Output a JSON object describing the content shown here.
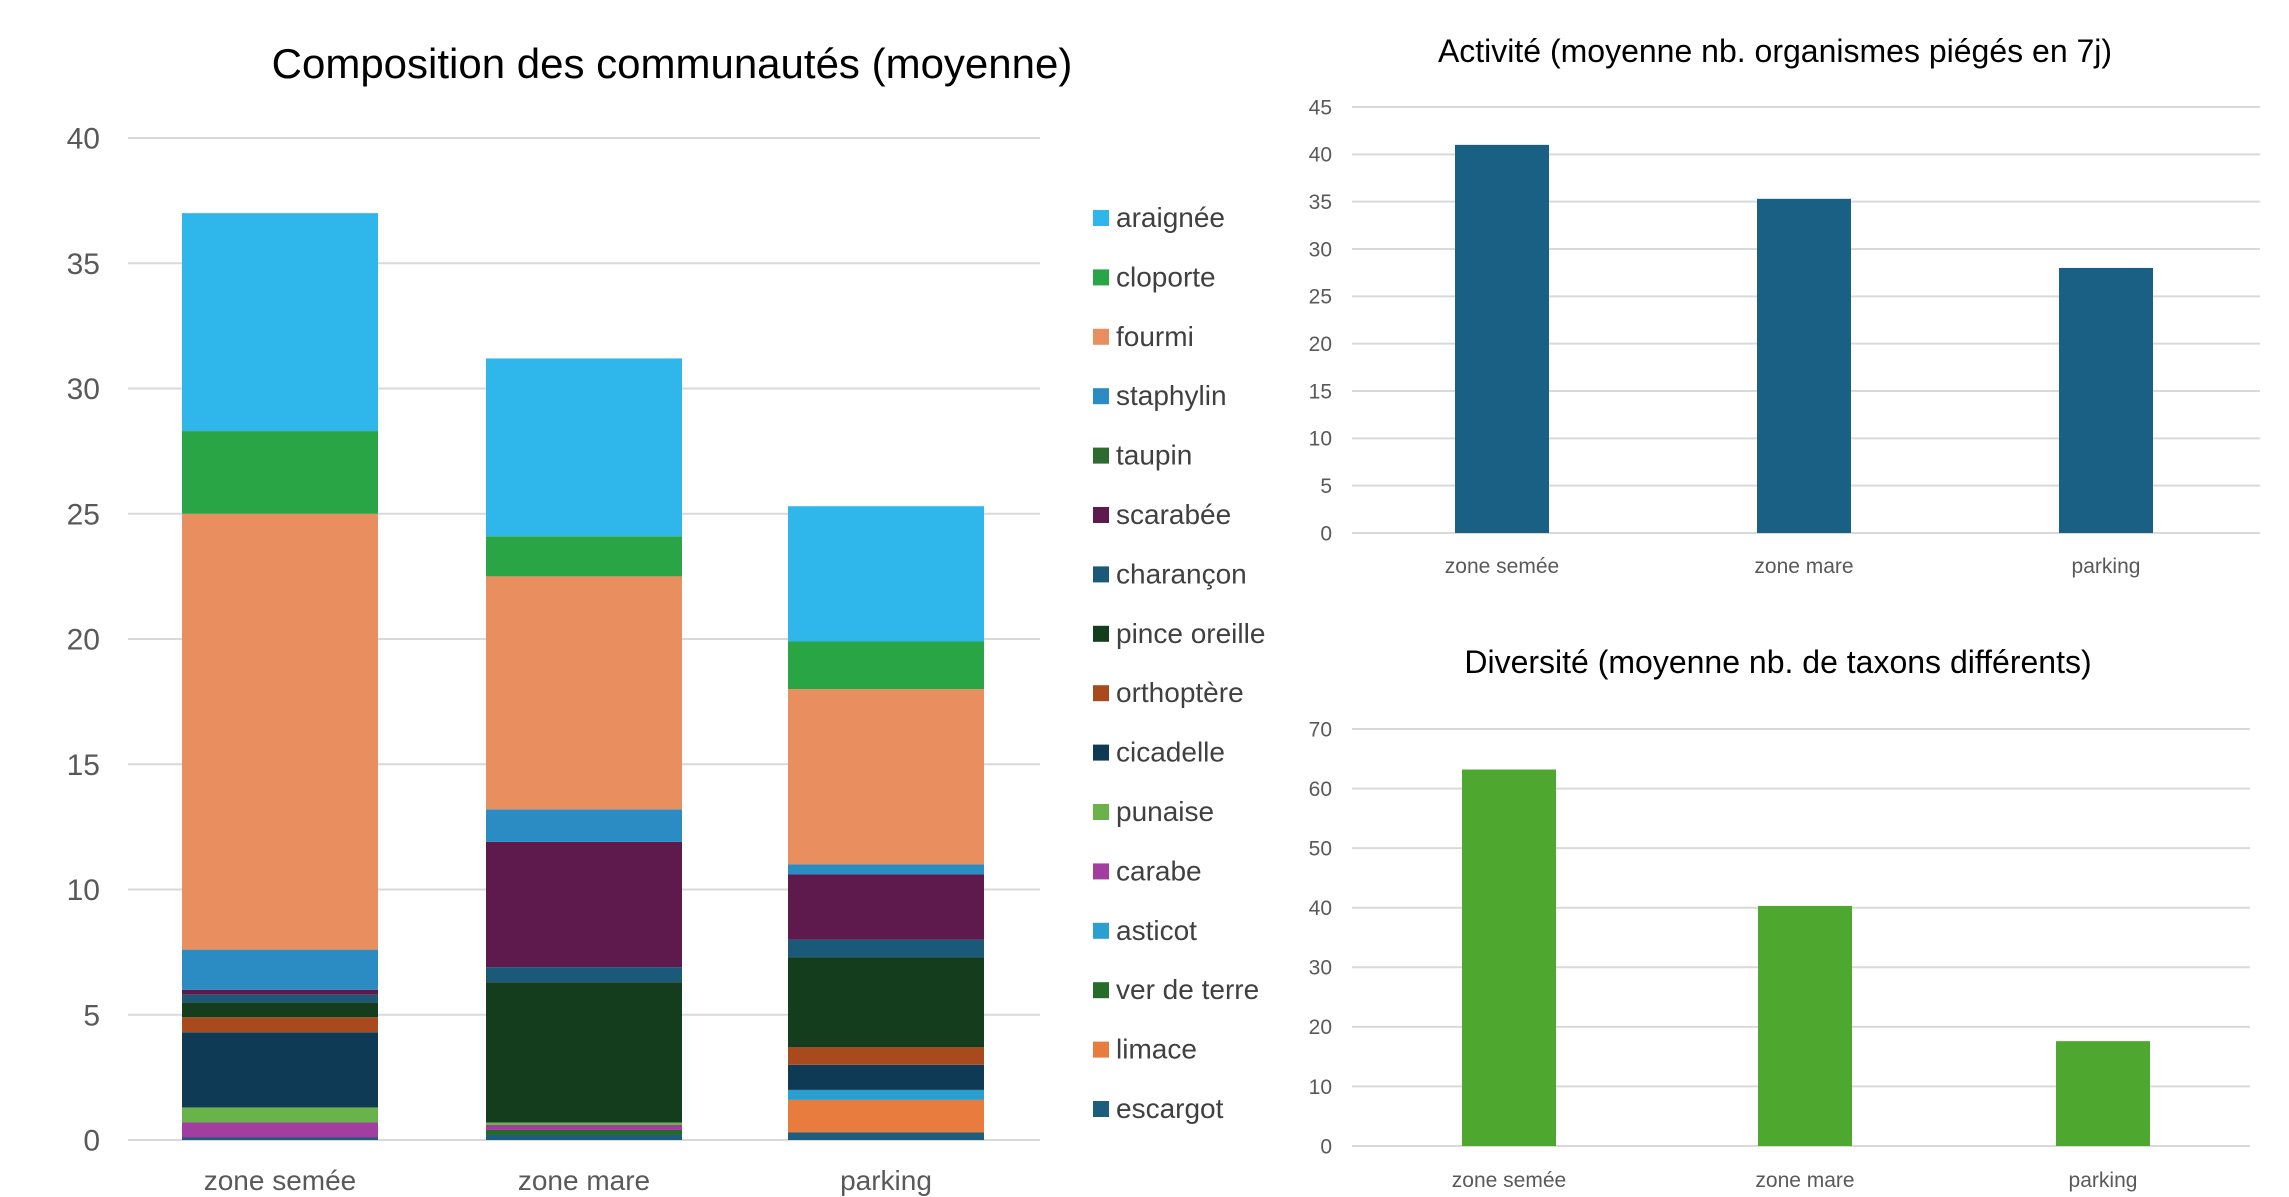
{
  "colors": {
    "grid": "#d9d9d9",
    "axis_text": "#595959",
    "title_text": "#595959",
    "activity_bar": "#1a5f84",
    "diversity_bar": "#4ea72e"
  },
  "chart_data": [
    {
      "type": "bar",
      "stacked": true,
      "title": "Composition des communautés (moyenne)",
      "categories": [
        "zone semée",
        "zone mare",
        "parking"
      ],
      "ylim": [
        0,
        40
      ],
      "yticks": [
        0,
        5,
        10,
        15,
        20,
        25,
        30,
        35,
        40
      ],
      "grid": true,
      "legend_position": "right",
      "series": [
        {
          "name": "escargot",
          "color": "#1b5e7e",
          "values": [
            0.1,
            0.2,
            0.3
          ]
        },
        {
          "name": "limace",
          "color": "#e87b3e",
          "values": [
            0,
            0,
            1.3
          ]
        },
        {
          "name": "ver de terre",
          "color": "#246b2c",
          "values": [
            0,
            0.2,
            0
          ]
        },
        {
          "name": "asticot",
          "color": "#2a9fd0",
          "values": [
            0,
            0,
            0.4
          ]
        },
        {
          "name": "carabe",
          "color": "#a23ea0",
          "values": [
            0.6,
            0.2,
            0
          ]
        },
        {
          "name": "punaise",
          "color": "#6ab34a",
          "values": [
            0.6,
            0.1,
            0
          ]
        },
        {
          "name": "cicadelle",
          "color": "#0f3a55",
          "values": [
            3.0,
            0,
            1.0
          ]
        },
        {
          "name": "orthoptère",
          "color": "#a84a1e",
          "values": [
            0.6,
            0,
            0.7
          ]
        },
        {
          "name": "pince oreille",
          "color": "#143d1d",
          "values": [
            0.6,
            5.6,
            3.6
          ]
        },
        {
          "name": "charançon",
          "color": "#1a5a78",
          "values": [
            0.3,
            0.6,
            0.7
          ]
        },
        {
          "name": "scarabée",
          "color": "#5e1a4d",
          "values": [
            0.2,
            5.0,
            2.6
          ]
        },
        {
          "name": "taupin",
          "color": "#2d6b30",
          "values": [
            0,
            0,
            0
          ]
        },
        {
          "name": "staphylin",
          "color": "#2b8cc4",
          "values": [
            1.6,
            1.3,
            0.4
          ]
        },
        {
          "name": "fourmi",
          "color": "#e98e5e",
          "values": [
            17.4,
            9.3,
            7.0
          ]
        },
        {
          "name": "cloporte",
          "color": "#2aa545",
          "values": [
            3.3,
            1.6,
            1.9
          ]
        },
        {
          "name": "araignée",
          "color": "#2fb6ea",
          "values": [
            8.7,
            7.1,
            5.4
          ]
        }
      ],
      "legend_order": [
        "araignée",
        "cloporte",
        "fourmi",
        "staphylin",
        "taupin",
        "scarabée",
        "charançon",
        "pince oreille",
        "orthoptère",
        "cicadelle",
        "punaise",
        "carabe",
        "asticot",
        "ver de terre",
        "limace",
        "escargot"
      ]
    },
    {
      "type": "bar",
      "title": "Activité (moyenne nb. organismes piégés en 7j)",
      "categories": [
        "zone semée",
        "zone mare",
        "parking"
      ],
      "values": [
        41,
        35.3,
        28
      ],
      "ylim": [
        0,
        45
      ],
      "yticks": [
        0,
        5,
        10,
        15,
        20,
        25,
        30,
        35,
        40,
        45
      ],
      "grid": true
    },
    {
      "type": "bar",
      "title": "Diversité (moyenne nb. de taxons différents)",
      "categories": [
        "zone semée",
        "zone mare",
        "parking"
      ],
      "values": [
        63.2,
        40.3,
        17.6
      ],
      "ylim": [
        0,
        70
      ],
      "yticks": [
        0,
        10,
        20,
        30,
        40,
        50,
        60,
        70
      ],
      "grid": true
    }
  ]
}
